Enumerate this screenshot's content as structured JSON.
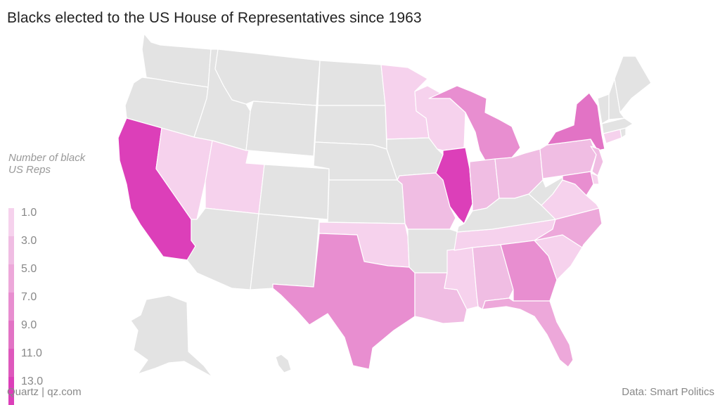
{
  "title": "Blacks elected to the US House of Representatives since 1963",
  "legend": {
    "title_line1": "Number of black",
    "title_line2": "US Reps",
    "bins": [
      {
        "label": "1.0",
        "color": "#f6d2ed"
      },
      {
        "label": "3.0",
        "color": "#f0bde3"
      },
      {
        "label": "5.0",
        "color": "#eda8da"
      },
      {
        "label": "7.0",
        "color": "#e88ed0"
      },
      {
        "label": "9.0",
        "color": "#e273c5"
      },
      {
        "label": "11.0",
        "color": "#de58bc"
      },
      {
        "label": "13.0",
        "color": "#dc3fb9"
      }
    ]
  },
  "colors": {
    "no_data": "#e3e3e3",
    "border": "#ffffff"
  },
  "states": {
    "CA": {
      "value": 13
    },
    "IL": {
      "value": 13
    },
    "NY": {
      "value": 9
    },
    "TX": {
      "value": 7
    },
    "GA": {
      "value": 7
    },
    "MI": {
      "value": 7
    },
    "FL": {
      "value": 5
    },
    "NC": {
      "value": 5
    },
    "MD": {
      "value": 7
    },
    "OH": {
      "value": 3
    },
    "PA": {
      "value": 3
    },
    "MO": {
      "value": 3
    },
    "LA": {
      "value": 3
    },
    "AL": {
      "value": 3
    },
    "IN": {
      "value": 3
    },
    "NJ": {
      "value": 3
    },
    "MN": {
      "value": 1
    },
    "WI": {
      "value": 1
    },
    "NV": {
      "value": 1
    },
    "UT": {
      "value": 1
    },
    "OK": {
      "value": 1
    },
    "MS": {
      "value": 1
    },
    "TN": {
      "value": 1
    },
    "SC": {
      "value": 1
    },
    "VA": {
      "value": 1
    },
    "CT": {
      "value": 1
    },
    "DE": {
      "value": 1
    }
  },
  "footer": {
    "source_left": "Quartz | qz.com",
    "source_right": "Data: Smart Politics"
  }
}
